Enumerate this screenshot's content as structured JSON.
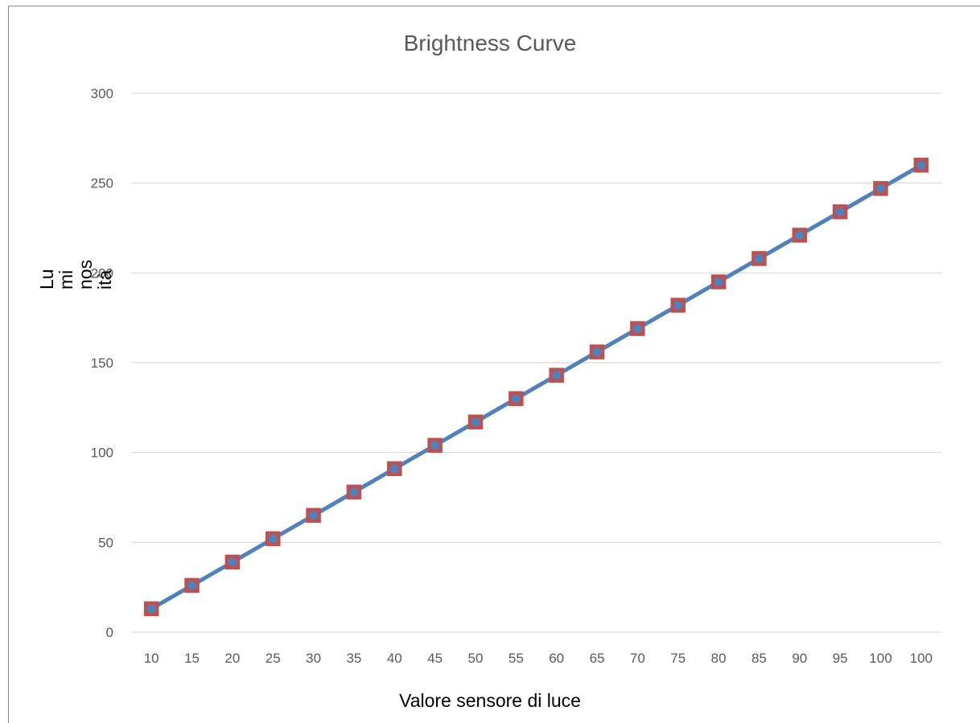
{
  "chart_data": {
    "type": "line",
    "title": "Brightness Curve",
    "xlabel": "Valore sensore di luce",
    "ylabel": "Luminosità",
    "ylabel_display": "Lu\nmi\nnos\nità",
    "categories": [
      "10",
      "15",
      "20",
      "25",
      "30",
      "35",
      "40",
      "45",
      "50",
      "55",
      "60",
      "65",
      "70",
      "75",
      "80",
      "85",
      "90",
      "95",
      "100",
      "100"
    ],
    "series": [
      {
        "values": [
          13,
          26,
          39,
          52,
          65,
          78,
          91,
          104,
          117,
          130,
          143,
          156,
          169,
          182,
          195,
          208,
          221,
          234,
          247,
          260
        ]
      }
    ],
    "ylim": [
      0,
      300
    ],
    "yticks": [
      0,
      50,
      100,
      150,
      200,
      250,
      300
    ],
    "grid": true,
    "legend": "none",
    "colors": {
      "line": "#4f81bd",
      "marker_fill": "#c0504d",
      "marker_border": "#c0504d",
      "grid": "#d9d9d9",
      "tick_text": "#595959"
    }
  }
}
